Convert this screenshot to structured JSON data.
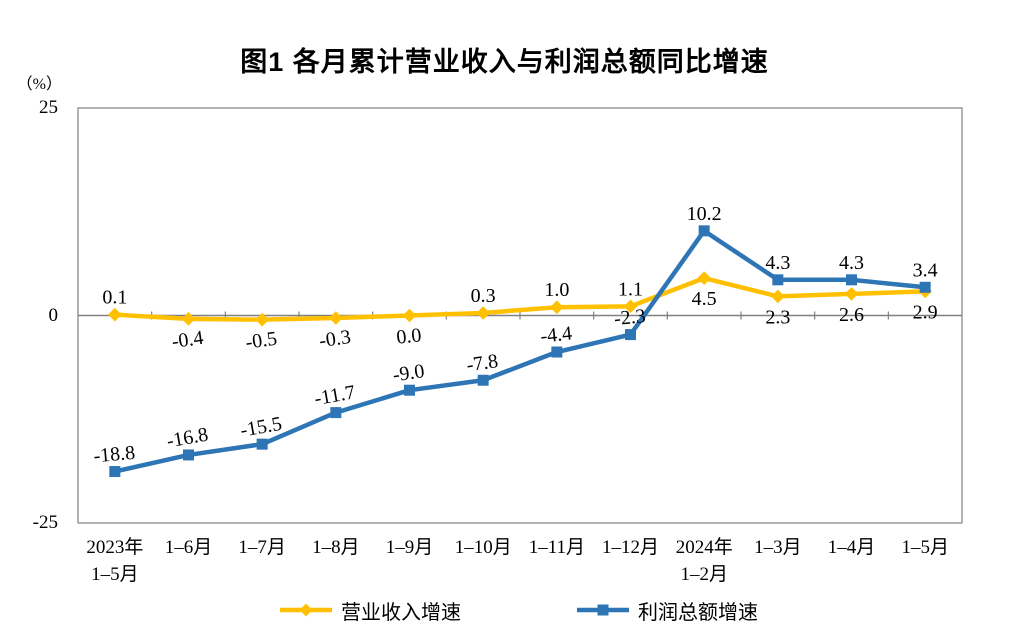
{
  "chart_data": {
    "type": "line",
    "title": "图1 各月累计营业收入与利润总额同比增速",
    "y_unit": "（%）",
    "ylim": [
      -25,
      25
    ],
    "yticks": [
      25,
      0,
      -25
    ],
    "grid": "zero-line-only",
    "legend_position": "bottom",
    "axis_color": "#808080",
    "label_color": "#000000",
    "categories": [
      "2023年\n1–5月",
      "1–6月",
      "1–7月",
      "1–8月",
      "1–9月",
      "1–10月",
      "1–11月",
      "1–12月",
      "2024年\n1–2月",
      "1–3月",
      "1–4月",
      "1–5月"
    ],
    "series": [
      {
        "name": "营业收入增速",
        "color": "#FFC000",
        "marker": "diamond",
        "values": [
          0.1,
          -0.4,
          -0.5,
          -0.3,
          0.0,
          0.3,
          1.0,
          1.1,
          4.5,
          2.3,
          2.6,
          2.9
        ],
        "label_positions": [
          "above",
          "below",
          "below",
          "below",
          "below",
          "above",
          "above",
          "above",
          "below",
          "below",
          "below",
          "below"
        ],
        "label_angles": [
          0,
          -8,
          -8,
          -8,
          -6,
          0,
          0,
          0,
          0,
          0,
          0,
          0
        ]
      },
      {
        "name": "利润总额增速",
        "color": "#2E75B6",
        "marker": "square",
        "values": [
          -18.8,
          -16.8,
          -15.5,
          -11.7,
          -9.0,
          -7.8,
          -4.4,
          -2.3,
          10.2,
          4.3,
          4.3,
          3.4
        ],
        "label_positions": [
          "above",
          "above",
          "above",
          "above",
          "above",
          "above",
          "above",
          "above",
          "above",
          "above",
          "above",
          "above"
        ],
        "label_angles": [
          -5,
          -10,
          -10,
          -10,
          -8,
          -8,
          -6,
          -6,
          0,
          0,
          0,
          0
        ]
      }
    ]
  }
}
